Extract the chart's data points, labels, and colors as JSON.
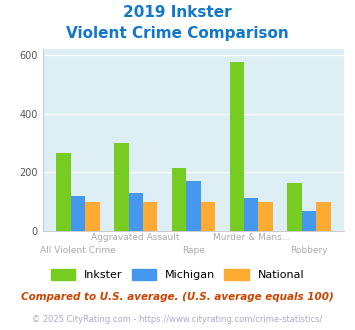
{
  "title_line1": "2019 Inkster",
  "title_line2": "Violent Crime Comparison",
  "categories": [
    "All Violent Crime",
    "Aggravated Assault",
    "Rape",
    "Murder & Mans...",
    "Robbery"
  ],
  "inkster": [
    265,
    300,
    215,
    578,
    163
  ],
  "michigan": [
    120,
    130,
    172,
    112,
    67
  ],
  "national": [
    100,
    100,
    100,
    100,
    100
  ],
  "inkster_color": "#77cc22",
  "michigan_color": "#4499ee",
  "national_color": "#ffaa33",
  "bg_color": "#ddeef5",
  "title_color": "#1177cc",
  "xlabel_color": "#aaaaaa",
  "ylim": [
    0,
    620
  ],
  "yticks": [
    0,
    200,
    400,
    600
  ],
  "footnote1": "Compared to U.S. average. (U.S. average equals 100)",
  "footnote2": "© 2025 CityRating.com - https://www.cityrating.com/crime-statistics/",
  "footnote1_color": "#cc4400",
  "footnote2_color": "#aaaacc"
}
